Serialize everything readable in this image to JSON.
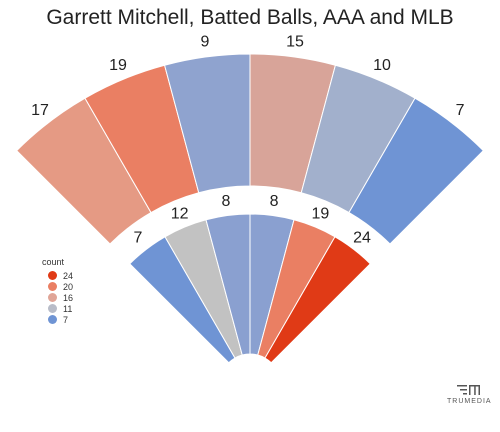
{
  "chart_data": {
    "type": "spray_chart",
    "title": "Garrett Mitchell, Batted Balls, AAA and MLB",
    "outfield": [
      {
        "zone": "LF-line",
        "value": 17,
        "color": "#e59a84"
      },
      {
        "zone": "LF",
        "value": 19,
        "color": "#ea7f63"
      },
      {
        "zone": "LCF",
        "value": 9,
        "color": "#8fa3cf"
      },
      {
        "zone": "RCF",
        "value": 15,
        "color": "#d8a499"
      },
      {
        "zone": "RF",
        "value": 10,
        "color": "#a2b0cc"
      },
      {
        "zone": "RF-line",
        "value": 7,
        "color": "#6f94d4"
      }
    ],
    "infield": [
      {
        "zone": "3B",
        "value": 7,
        "color": "#6f94d4"
      },
      {
        "zone": "SS",
        "value": 12,
        "color": "#c2c2c2"
      },
      {
        "zone": "2B-left",
        "value": 8,
        "color": "#8aa0d0"
      },
      {
        "zone": "2B-right",
        "value": 8,
        "color": "#8aa0d0"
      },
      {
        "zone": "1B-hole",
        "value": 19,
        "color": "#ea7f63"
      },
      {
        "zone": "1B",
        "value": 24,
        "color": "#e03a16"
      }
    ],
    "legend": {
      "title": "count",
      "placement": "left",
      "items": [
        {
          "label": "24",
          "color": "#e03a16"
        },
        {
          "label": "20",
          "color": "#ea7f63"
        },
        {
          "label": "16",
          "color": "#e0a597"
        },
        {
          "label": "11",
          "color": "#b8bcc8"
        },
        {
          "label": "7",
          "color": "#6f94d4"
        }
      ]
    }
  },
  "brand": {
    "name": "TRUMEDIA"
  }
}
